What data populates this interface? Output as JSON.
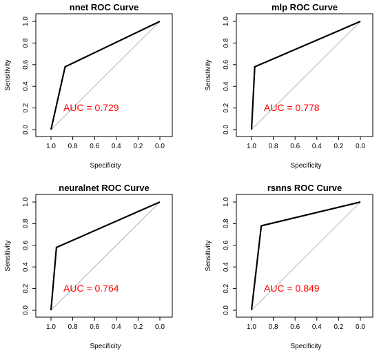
{
  "chart_data": [
    {
      "type": "line",
      "title": "nnet ROC Curve",
      "xlabel": "Specificity",
      "ylabel": "Sensitivity",
      "xlim": [
        1.0,
        0.0
      ],
      "ylim": [
        0.0,
        1.0
      ],
      "x_ticks": [
        "1.0",
        "0.8",
        "0.6",
        "0.4",
        "0.2",
        "0.0"
      ],
      "y_ticks": [
        "0.0",
        "0.2",
        "0.4",
        "0.6",
        "0.8",
        "1.0"
      ],
      "series": [
        {
          "x": [
            1.0,
            0.87,
            0.0
          ],
          "y": [
            0.0,
            0.58,
            1.0
          ]
        }
      ],
      "auc_label": "AUC =  0.729",
      "grid": false
    },
    {
      "type": "line",
      "title": "mlp ROC Curve",
      "xlabel": "Specificity",
      "ylabel": "Sensitivity",
      "xlim": [
        1.0,
        0.0
      ],
      "ylim": [
        0.0,
        1.0
      ],
      "x_ticks": [
        "1.0",
        "0.8",
        "0.6",
        "0.4",
        "0.2",
        "0.0"
      ],
      "y_ticks": [
        "0.0",
        "0.2",
        "0.4",
        "0.6",
        "0.8",
        "1.0"
      ],
      "series": [
        {
          "x": [
            1.0,
            0.97,
            0.0
          ],
          "y": [
            0.0,
            0.58,
            1.0
          ]
        }
      ],
      "auc_label": "AUC =  0.778",
      "grid": false
    },
    {
      "type": "line",
      "title": "neuralnet ROC Curve",
      "xlabel": "Specificity",
      "ylabel": "Sensitivity",
      "xlim": [
        1.0,
        0.0
      ],
      "ylim": [
        0.0,
        1.0
      ],
      "x_ticks": [
        "1.0",
        "0.8",
        "0.6",
        "0.4",
        "0.2",
        "0.0"
      ],
      "y_ticks": [
        "0.0",
        "0.2",
        "0.4",
        "0.6",
        "0.8",
        "1.0"
      ],
      "series": [
        {
          "x": [
            1.0,
            0.95,
            0.0
          ],
          "y": [
            0.0,
            0.58,
            1.0
          ]
        }
      ],
      "auc_label": "AUC =  0.764",
      "grid": false
    },
    {
      "type": "line",
      "title": "rsnns ROC Curve",
      "xlabel": "Specificity",
      "ylabel": "Sensitivity",
      "xlim": [
        1.0,
        0.0
      ],
      "ylim": [
        0.0,
        1.0
      ],
      "x_ticks": [
        "1.0",
        "0.8",
        "0.6",
        "0.4",
        "0.2",
        "0.0"
      ],
      "y_ticks": [
        "0.0",
        "0.2",
        "0.4",
        "0.6",
        "0.8",
        "1.0"
      ],
      "series": [
        {
          "x": [
            1.0,
            0.91,
            0.0
          ],
          "y": [
            0.0,
            0.78,
            1.0
          ]
        }
      ],
      "auc_label": "AUC =  0.849",
      "grid": false
    }
  ]
}
